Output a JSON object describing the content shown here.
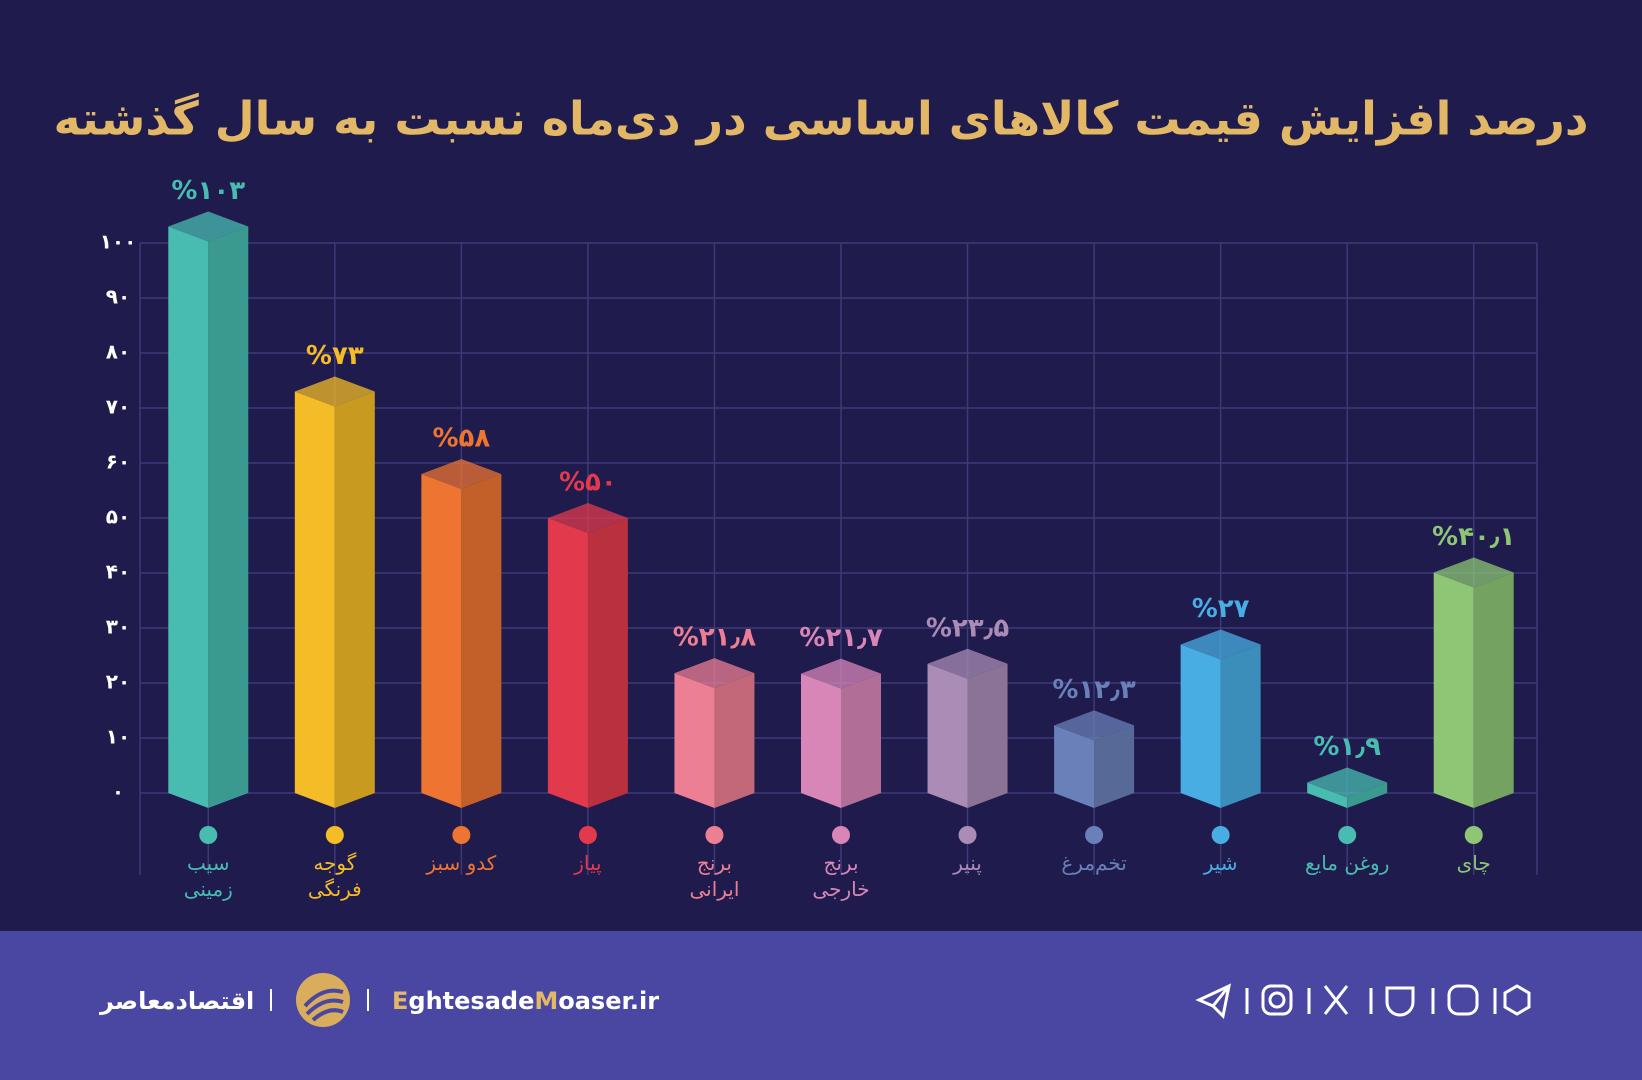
{
  "chart_data": {
    "type": "bar3d",
    "title": "درصد افزایش قیمت کالاهای اساسی در دی‌ماه نسبت به سال گذشته",
    "categories": [
      "سیب زمینی",
      "گوجه فرنگی",
      "کدو سبز",
      "پیاز",
      "برنج ایرانی",
      "برنج خارجی",
      "پنیر",
      "تخم‌مرغ",
      "شیر",
      "روغن مایع",
      "چای"
    ],
    "values": [
      103,
      73,
      58,
      50,
      21.8,
      21.7,
      23.5,
      12.3,
      27,
      1.9,
      40.1
    ],
    "value_labels": [
      "%۱۰۳",
      "%۷۳",
      "%۵۸",
      "%۵۰",
      "%۲۱٫۸",
      "%۲۱٫۷",
      "%۲۳٫۵",
      "%۱۲٫۳",
      "%۲۷",
      "%۱٫۹",
      "%۴۰٫۱"
    ],
    "colors": [
      "#48bcb0",
      "#f4bc26",
      "#ee7431",
      "#e23a4c",
      "#ec7f93",
      "#d886b8",
      "#aa8cb6",
      "#6a80b8",
      "#48ade2",
      "#48bcb0",
      "#8ec676"
    ],
    "ylim": [
      0,
      100
    ],
    "yticks": [
      {
        "value": 0,
        "label": "۰"
      },
      {
        "value": 10,
        "label": "۱۰"
      },
      {
        "value": 20,
        "label": "۲۰"
      },
      {
        "value": 30,
        "label": "۳۰"
      },
      {
        "value": 40,
        "label": "۴۰"
      },
      {
        "value": 50,
        "label": "۵۰"
      },
      {
        "value": 60,
        "label": "۶۰"
      },
      {
        "value": 70,
        "label": "۷۰"
      },
      {
        "value": 80,
        "label": "۸۰"
      },
      {
        "value": 90,
        "label": "۹۰"
      },
      {
        "value": 100,
        "label": "۱۰۰"
      }
    ],
    "grid": true
  },
  "footer": {
    "brand": "اقتصادمعاصر",
    "site_parts": [
      "E",
      "ghtesade",
      "M",
      "oaser.ir"
    ]
  }
}
